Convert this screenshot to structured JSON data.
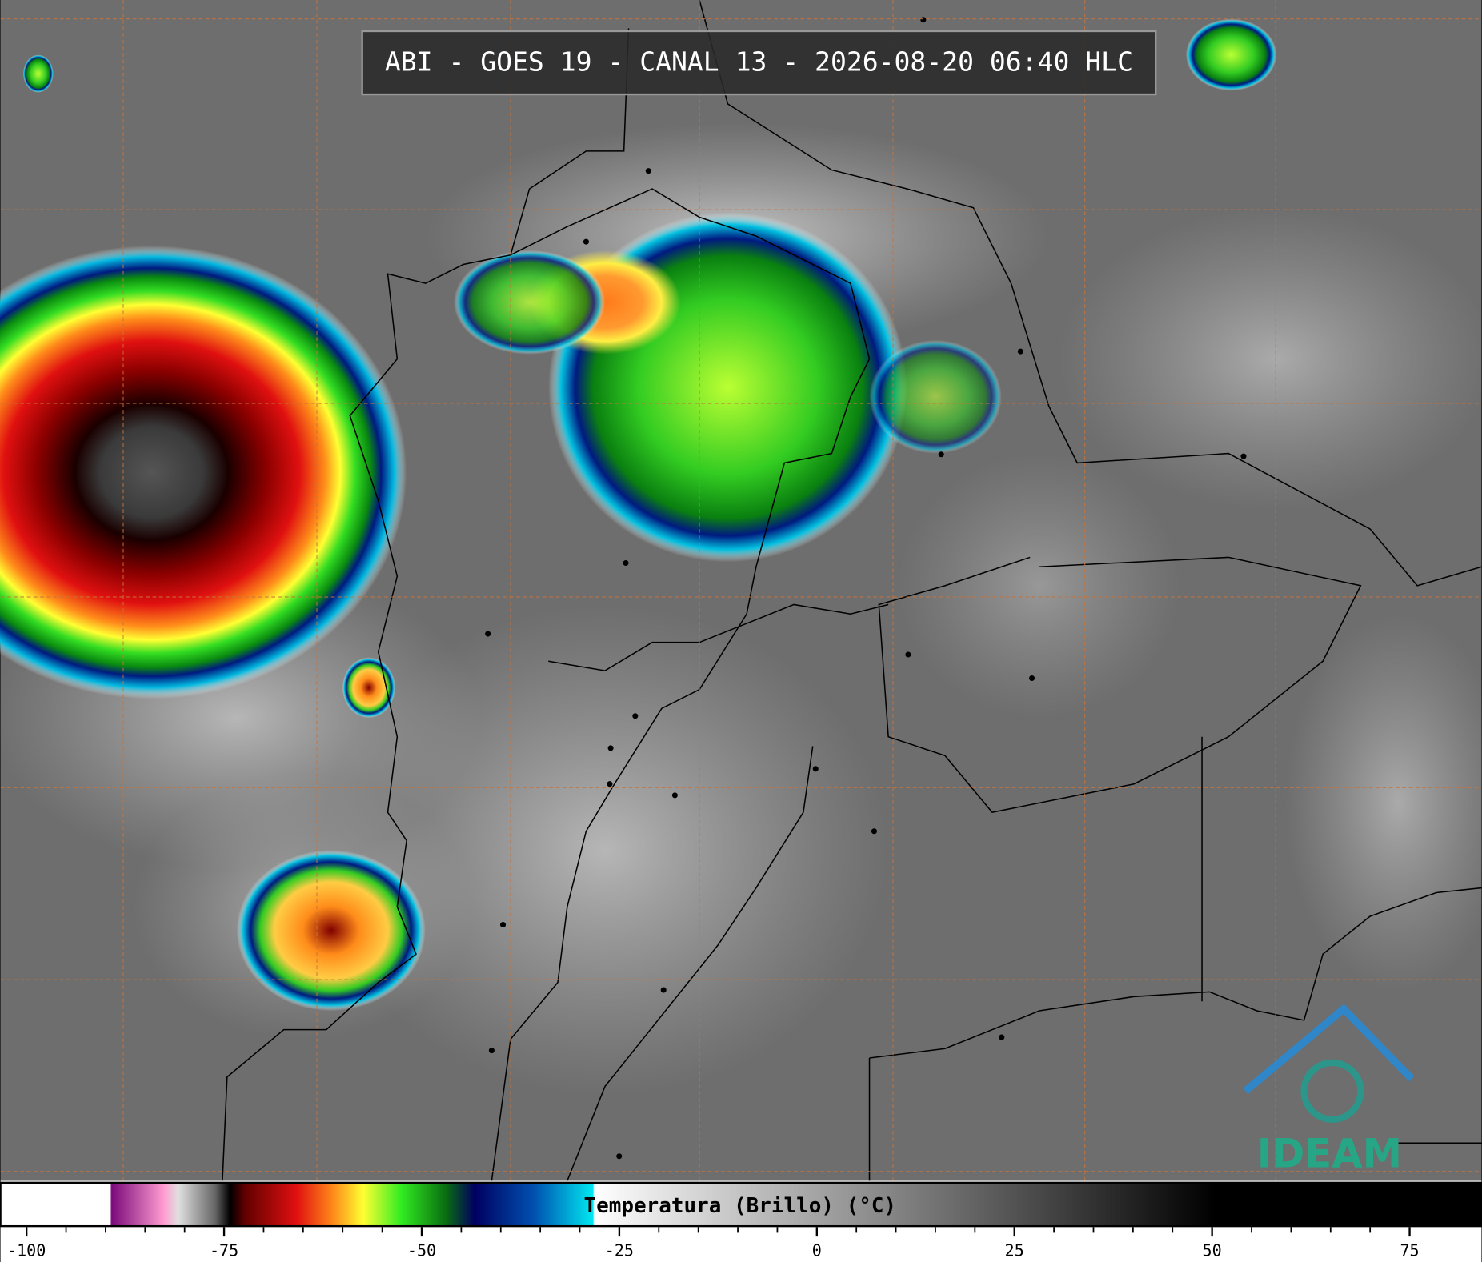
{
  "title": "ABI - GOES 19 - CANAL 13 - 2026-08-20 06:40 HLC",
  "colorbar": {
    "label": "Temperatura (Brillo) (°C)",
    "range": [
      -103.3,
      84.1
    ],
    "ticks": [
      -100,
      -75,
      -50,
      -25,
      0,
      25,
      50,
      75
    ]
  },
  "logo": "IDEAM"
}
